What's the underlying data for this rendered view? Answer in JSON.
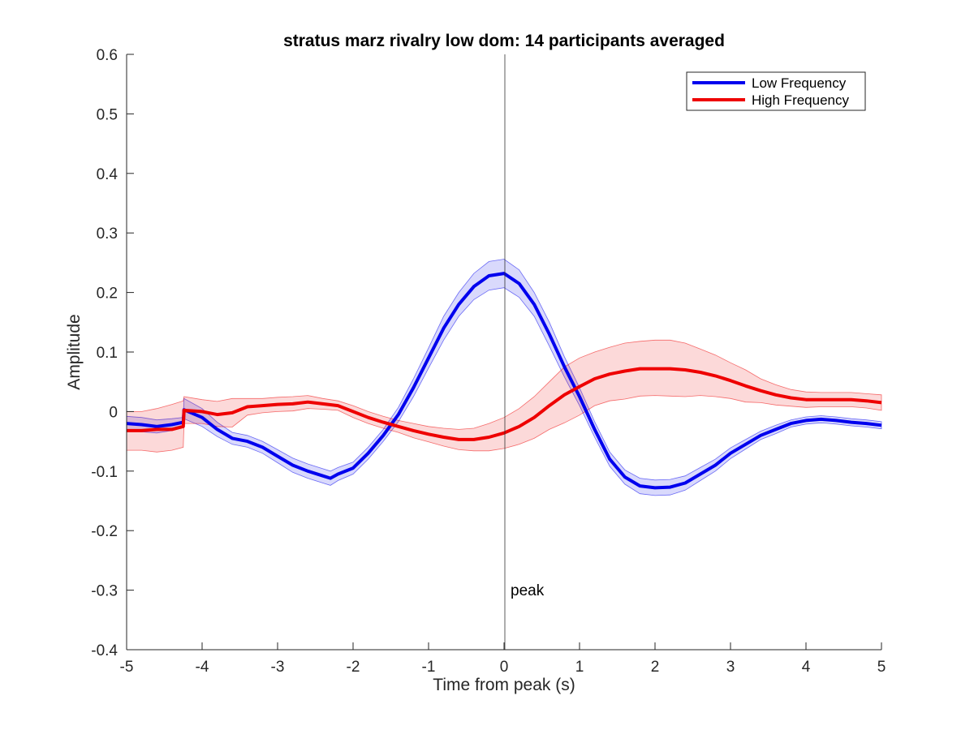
{
  "chart_data": {
    "type": "line",
    "title": "stratus marz rivalry low dom: 14 participants averaged",
    "xlabel": "Time from peak (s)",
    "ylabel": "Amplitude",
    "xlim": [
      -5,
      5
    ],
    "ylim": [
      -0.4,
      0.6
    ],
    "xticks": [
      "-5",
      "-4",
      "-3",
      "-2",
      "-1",
      "0",
      "1",
      "2",
      "3",
      "4",
      "5"
    ],
    "yticks": [
      "0.6",
      "0.5",
      "0.4",
      "0.3",
      "0.2",
      "0.1",
      "0",
      "-0.1",
      "-0.2",
      "-0.3",
      "-0.4"
    ],
    "grid": false,
    "legend_position": "top-right",
    "annotation": {
      "text": "peak",
      "x": 0,
      "y": -0.3
    },
    "series": [
      {
        "name": "Low Frequency",
        "color": "#0000ee",
        "x": [
          -5,
          -4.8,
          -4.6,
          -4.4,
          -4.25,
          -4.24,
          -4.0,
          -3.8,
          -3.6,
          -3.4,
          -3.2,
          -3.0,
          -2.8,
          -2.6,
          -2.4,
          -2.3,
          -2.2,
          -2.0,
          -1.8,
          -1.6,
          -1.4,
          -1.2,
          -1.0,
          -0.8,
          -0.6,
          -0.4,
          -0.2,
          0,
          0.2,
          0.4,
          0.6,
          0.8,
          1.0,
          1.2,
          1.4,
          1.6,
          1.8,
          2.0,
          2.2,
          2.4,
          2.6,
          2.8,
          3.0,
          3.2,
          3.4,
          3.6,
          3.8,
          4.0,
          4.2,
          4.4,
          4.6,
          4.8,
          5.0
        ],
        "y": [
          -0.02,
          -0.022,
          -0.025,
          -0.022,
          -0.018,
          0.003,
          -0.01,
          -0.03,
          -0.045,
          -0.05,
          -0.06,
          -0.075,
          -0.09,
          -0.1,
          -0.108,
          -0.112,
          -0.105,
          -0.095,
          -0.07,
          -0.04,
          -0.005,
          0.04,
          0.09,
          0.14,
          0.18,
          0.21,
          0.228,
          0.232,
          0.215,
          0.18,
          0.13,
          0.075,
          0.025,
          -0.03,
          -0.08,
          -0.11,
          -0.125,
          -0.128,
          -0.127,
          -0.12,
          -0.105,
          -0.09,
          -0.07,
          -0.055,
          -0.04,
          -0.03,
          -0.02,
          -0.015,
          -0.013,
          -0.015,
          -0.018,
          -0.02,
          -0.023
        ],
        "upper": [
          -0.008,
          -0.01,
          -0.014,
          -0.012,
          -0.01,
          0.022,
          0.005,
          -0.018,
          -0.035,
          -0.04,
          -0.05,
          -0.064,
          -0.078,
          -0.088,
          -0.096,
          -0.1,
          -0.094,
          -0.085,
          -0.06,
          -0.03,
          0.007,
          0.055,
          0.107,
          0.16,
          0.2,
          0.232,
          0.252,
          0.256,
          0.238,
          0.2,
          0.15,
          0.092,
          0.04,
          -0.017,
          -0.068,
          -0.098,
          -0.112,
          -0.115,
          -0.114,
          -0.108,
          -0.094,
          -0.08,
          -0.061,
          -0.047,
          -0.033,
          -0.023,
          -0.014,
          -0.009,
          -0.007,
          -0.009,
          -0.012,
          -0.014,
          -0.017
        ],
        "lower": [
          -0.032,
          -0.034,
          -0.036,
          -0.032,
          -0.026,
          -0.012,
          -0.025,
          -0.042,
          -0.055,
          -0.06,
          -0.07,
          -0.086,
          -0.102,
          -0.112,
          -0.12,
          -0.124,
          -0.116,
          -0.105,
          -0.08,
          -0.05,
          -0.017,
          0.025,
          0.073,
          0.12,
          0.16,
          0.188,
          0.204,
          0.208,
          0.192,
          0.16,
          0.11,
          0.058,
          0.01,
          -0.043,
          -0.092,
          -0.122,
          -0.138,
          -0.141,
          -0.14,
          -0.132,
          -0.116,
          -0.1,
          -0.079,
          -0.063,
          -0.047,
          -0.037,
          -0.026,
          -0.021,
          -0.019,
          -0.021,
          -0.024,
          -0.026,
          -0.029
        ]
      },
      {
        "name": "High Frequency",
        "color": "#ee0000",
        "x": [
          -5,
          -4.8,
          -4.6,
          -4.4,
          -4.25,
          -4.24,
          -4.0,
          -3.8,
          -3.6,
          -3.4,
          -3.2,
          -3.0,
          -2.8,
          -2.6,
          -2.4,
          -2.2,
          -2.0,
          -1.8,
          -1.6,
          -1.4,
          -1.2,
          -1.0,
          -0.8,
          -0.6,
          -0.4,
          -0.2,
          0,
          0.2,
          0.4,
          0.6,
          0.8,
          1.0,
          1.2,
          1.4,
          1.6,
          1.8,
          2.0,
          2.2,
          2.4,
          2.6,
          2.8,
          3.0,
          3.2,
          3.4,
          3.6,
          3.8,
          4.0,
          4.2,
          4.4,
          4.6,
          4.8,
          5.0
        ],
        "y": [
          -0.032,
          -0.032,
          -0.03,
          -0.03,
          -0.025,
          0.002,
          0.0,
          -0.005,
          -0.002,
          0.008,
          0.01,
          0.012,
          0.013,
          0.016,
          0.013,
          0.01,
          0.0,
          -0.01,
          -0.018,
          -0.025,
          -0.032,
          -0.038,
          -0.043,
          -0.047,
          -0.047,
          -0.043,
          -0.036,
          -0.025,
          -0.01,
          0.01,
          0.028,
          0.042,
          0.055,
          0.063,
          0.068,
          0.072,
          0.072,
          0.072,
          0.07,
          0.066,
          0.06,
          0.052,
          0.043,
          0.035,
          0.028,
          0.023,
          0.02,
          0.02,
          0.02,
          0.02,
          0.018,
          0.015
        ],
        "upper": [
          0.0,
          0.0,
          0.005,
          0.012,
          0.018,
          0.025,
          0.02,
          0.017,
          0.022,
          0.022,
          0.022,
          0.024,
          0.025,
          0.027,
          0.022,
          0.018,
          0.01,
          0.0,
          -0.008,
          -0.015,
          -0.02,
          -0.025,
          -0.028,
          -0.03,
          -0.028,
          -0.02,
          -0.01,
          0.005,
          0.025,
          0.05,
          0.075,
          0.09,
          0.1,
          0.108,
          0.115,
          0.118,
          0.12,
          0.12,
          0.115,
          0.105,
          0.095,
          0.082,
          0.07,
          0.055,
          0.045,
          0.037,
          0.033,
          0.032,
          0.032,
          0.032,
          0.03,
          0.028
        ],
        "lower": [
          -0.065,
          -0.065,
          -0.068,
          -0.065,
          -0.06,
          -0.02,
          -0.02,
          -0.025,
          -0.026,
          -0.006,
          -0.002,
          0.0,
          0.001,
          0.005,
          0.004,
          0.002,
          -0.01,
          -0.02,
          -0.028,
          -0.035,
          -0.044,
          -0.051,
          -0.058,
          -0.064,
          -0.066,
          -0.066,
          -0.062,
          -0.055,
          -0.045,
          -0.03,
          -0.019,
          -0.006,
          0.01,
          0.018,
          0.021,
          0.026,
          0.027,
          0.026,
          0.025,
          0.027,
          0.025,
          0.022,
          0.016,
          0.015,
          0.011,
          0.009,
          0.007,
          0.008,
          0.008,
          0.008,
          0.006,
          0.002
        ]
      }
    ]
  }
}
